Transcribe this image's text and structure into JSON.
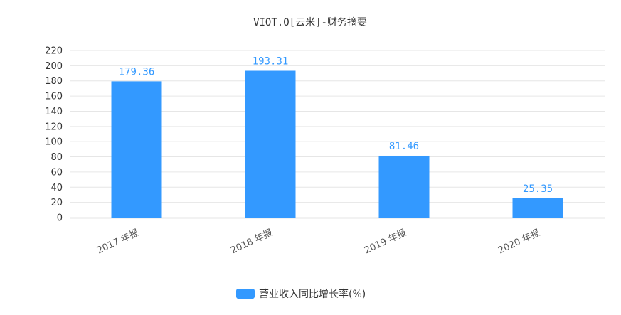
{
  "chart_data": {
    "type": "bar",
    "title": "VIOT.O[云米]-财务摘要",
    "categories": [
      "2017 年报",
      "2018 年报",
      "2019 年报",
      "2020 年报"
    ],
    "series": [
      {
        "name": "营业收入同比增长率(%)",
        "values": [
          179.36,
          193.31,
          81.46,
          25.35
        ],
        "labels": [
          "179.36",
          "193.31",
          "81.46",
          "25.35"
        ],
        "color": "#3399ff"
      }
    ],
    "xlabel": "",
    "ylabel": "",
    "ylim": [
      0,
      220
    ],
    "yticks": [
      0,
      20,
      40,
      60,
      80,
      100,
      120,
      140,
      160,
      180,
      200,
      220
    ],
    "grid": true,
    "legend_position": "bottom-center",
    "colors": {
      "bar": "#3399ff",
      "data_label": "#3399ff",
      "grid": "#e6e6e6",
      "axis": "#cccccc"
    }
  }
}
